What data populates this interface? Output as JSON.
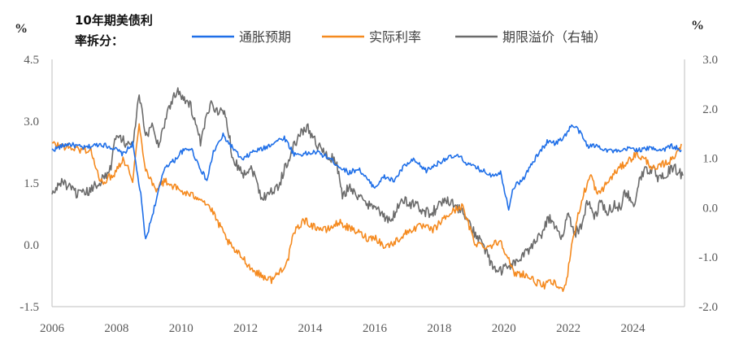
{
  "chart_data": {
    "type": "line",
    "title": [
      "10年期美债利",
      "率拆分："
    ],
    "left_unit": "%",
    "right_unit": "%",
    "left_axis": {
      "ylim": [
        -1.5,
        4.5
      ],
      "ticks": [
        "4.5",
        "3.0",
        "1.5",
        "0.0",
        "-1.5"
      ]
    },
    "right_axis": {
      "ylim": [
        -2.0,
        3.0
      ],
      "ticks": [
        "3.0",
        "2.0",
        "1.0",
        "0.0",
        "-1.0",
        "-2.0"
      ]
    },
    "x_ticks": [
      "2006",
      "2008",
      "2010",
      "2012",
      "2014",
      "2016",
      "2018",
      "2020",
      "2022",
      "2024"
    ],
    "xlim": [
      2006.0,
      2025.6
    ],
    "grid": false,
    "legend_position": "top",
    "series": [
      {
        "name": "通胀预期",
        "axis": "left",
        "color": "#1f6fe8",
        "points": [
          [
            2006.0,
            2.3
          ],
          [
            2006.5,
            2.45
          ],
          [
            2007.0,
            2.35
          ],
          [
            2007.5,
            2.45
          ],
          [
            2007.9,
            2.35
          ],
          [
            2008.2,
            2.2
          ],
          [
            2008.5,
            2.45
          ],
          [
            2008.75,
            1.2
          ],
          [
            2008.9,
            0.1
          ],
          [
            2009.2,
            1.0
          ],
          [
            2009.5,
            1.9
          ],
          [
            2009.8,
            2.05
          ],
          [
            2010.0,
            2.25
          ],
          [
            2010.3,
            2.35
          ],
          [
            2010.6,
            1.85
          ],
          [
            2010.8,
            1.55
          ],
          [
            2011.0,
            2.25
          ],
          [
            2011.3,
            2.65
          ],
          [
            2011.6,
            2.35
          ],
          [
            2011.9,
            2.05
          ],
          [
            2012.2,
            2.25
          ],
          [
            2012.6,
            2.35
          ],
          [
            2012.9,
            2.5
          ],
          [
            2013.2,
            2.6
          ],
          [
            2013.5,
            2.2
          ],
          [
            2013.8,
            2.2
          ],
          [
            2014.2,
            2.25
          ],
          [
            2014.6,
            2.1
          ],
          [
            2014.9,
            1.9
          ],
          [
            2015.2,
            1.75
          ],
          [
            2015.5,
            1.85
          ],
          [
            2015.8,
            1.55
          ],
          [
            2016.0,
            1.4
          ],
          [
            2016.3,
            1.65
          ],
          [
            2016.6,
            1.55
          ],
          [
            2016.9,
            1.9
          ],
          [
            2017.2,
            2.05
          ],
          [
            2017.6,
            1.8
          ],
          [
            2017.9,
            1.95
          ],
          [
            2018.2,
            2.1
          ],
          [
            2018.6,
            2.15
          ],
          [
            2018.9,
            1.95
          ],
          [
            2019.2,
            1.85
          ],
          [
            2019.6,
            1.7
          ],
          [
            2019.9,
            1.75
          ],
          [
            2020.15,
            0.9
          ],
          [
            2020.3,
            1.4
          ],
          [
            2020.6,
            1.6
          ],
          [
            2020.9,
            2.0
          ],
          [
            2021.2,
            2.35
          ],
          [
            2021.4,
            2.55
          ],
          [
            2021.6,
            2.45
          ],
          [
            2021.9,
            2.65
          ],
          [
            2022.1,
            2.9
          ],
          [
            2022.3,
            2.8
          ],
          [
            2022.6,
            2.4
          ],
          [
            2022.9,
            2.4
          ],
          [
            2023.2,
            2.3
          ],
          [
            2023.6,
            2.25
          ],
          [
            2023.9,
            2.35
          ],
          [
            2024.2,
            2.3
          ],
          [
            2024.6,
            2.35
          ],
          [
            2024.9,
            2.3
          ],
          [
            2025.2,
            2.4
          ],
          [
            2025.5,
            2.3
          ]
        ]
      },
      {
        "name": "实际利率",
        "axis": "left",
        "color": "#f58a1f",
        "points": [
          [
            2006.0,
            2.45
          ],
          [
            2006.3,
            2.4
          ],
          [
            2006.6,
            2.35
          ],
          [
            2006.9,
            2.3
          ],
          [
            2007.2,
            2.3
          ],
          [
            2007.5,
            1.5
          ],
          [
            2007.9,
            1.7
          ],
          [
            2008.2,
            2.1
          ],
          [
            2008.5,
            1.6
          ],
          [
            2008.7,
            2.9
          ],
          [
            2008.9,
            1.85
          ],
          [
            2009.2,
            1.35
          ],
          [
            2009.5,
            1.55
          ],
          [
            2009.8,
            1.4
          ],
          [
            2010.0,
            1.3
          ],
          [
            2010.3,
            1.2
          ],
          [
            2010.6,
            1.15
          ],
          [
            2010.9,
            0.9
          ],
          [
            2011.2,
            0.45
          ],
          [
            2011.4,
            0.15
          ],
          [
            2011.6,
            -0.1
          ],
          [
            2011.9,
            -0.3
          ],
          [
            2012.2,
            -0.6
          ],
          [
            2012.5,
            -0.75
          ],
          [
            2012.8,
            -0.85
          ],
          [
            2013.0,
            -0.7
          ],
          [
            2013.3,
            -0.4
          ],
          [
            2013.5,
            0.3
          ],
          [
            2013.8,
            0.6
          ],
          [
            2014.1,
            0.45
          ],
          [
            2014.5,
            0.35
          ],
          [
            2014.9,
            0.55
          ],
          [
            2015.2,
            0.4
          ],
          [
            2015.5,
            0.3
          ],
          [
            2015.8,
            0.15
          ],
          [
            2016.0,
            0.2
          ],
          [
            2016.3,
            -0.05
          ],
          [
            2016.6,
            0.05
          ],
          [
            2016.9,
            0.25
          ],
          [
            2017.2,
            0.4
          ],
          [
            2017.5,
            0.45
          ],
          [
            2017.8,
            0.35
          ],
          [
            2018.1,
            0.6
          ],
          [
            2018.4,
            0.8
          ],
          [
            2018.7,
            0.95
          ],
          [
            2018.9,
            0.5
          ],
          [
            2019.1,
            0.05
          ],
          [
            2019.5,
            -0.05
          ],
          [
            2019.9,
            0.1
          ],
          [
            2020.1,
            -0.25
          ],
          [
            2020.3,
            -0.7
          ],
          [
            2020.6,
            -0.7
          ],
          [
            2020.9,
            -0.85
          ],
          [
            2021.2,
            -1.0
          ],
          [
            2021.5,
            -0.9
          ],
          [
            2021.8,
            -1.1
          ],
          [
            2021.95,
            -0.85
          ],
          [
            2022.1,
            0.0
          ],
          [
            2022.3,
            0.7
          ],
          [
            2022.5,
            1.3
          ],
          [
            2022.7,
            1.7
          ],
          [
            2022.9,
            1.2
          ],
          [
            2023.2,
            1.5
          ],
          [
            2023.5,
            1.8
          ],
          [
            2023.8,
            2.0
          ],
          [
            2024.1,
            2.2
          ],
          [
            2024.4,
            2.05
          ],
          [
            2024.7,
            1.8
          ],
          [
            2024.9,
            1.95
          ],
          [
            2025.2,
            2.05
          ],
          [
            2025.5,
            2.45
          ]
        ]
      },
      {
        "name": "期限溢价（右轴）",
        "axis": "right",
        "color": "#6b6b6b",
        "points": [
          [
            2006.0,
            0.25
          ],
          [
            2006.3,
            0.55
          ],
          [
            2006.6,
            0.35
          ],
          [
            2006.9,
            0.25
          ],
          [
            2007.2,
            0.35
          ],
          [
            2007.5,
            0.55
          ],
          [
            2007.8,
            0.75
          ],
          [
            2008.0,
            1.55
          ],
          [
            2008.3,
            1.3
          ],
          [
            2008.5,
            1.25
          ],
          [
            2008.7,
            2.3
          ],
          [
            2008.9,
            1.4
          ],
          [
            2009.1,
            1.7
          ],
          [
            2009.3,
            1.25
          ],
          [
            2009.6,
            2.0
          ],
          [
            2009.9,
            2.4
          ],
          [
            2010.1,
            2.2
          ],
          [
            2010.3,
            2.05
          ],
          [
            2010.6,
            1.3
          ],
          [
            2010.9,
            2.1
          ],
          [
            2011.2,
            1.95
          ],
          [
            2011.4,
            1.85
          ],
          [
            2011.6,
            1.0
          ],
          [
            2011.9,
            0.7
          ],
          [
            2012.2,
            0.8
          ],
          [
            2012.5,
            0.2
          ],
          [
            2012.7,
            0.3
          ],
          [
            2013.0,
            0.4
          ],
          [
            2013.3,
            0.95
          ],
          [
            2013.6,
            1.4
          ],
          [
            2013.9,
            1.65
          ],
          [
            2014.2,
            1.3
          ],
          [
            2014.5,
            1.05
          ],
          [
            2014.8,
            0.95
          ],
          [
            2015.0,
            0.2
          ],
          [
            2015.2,
            0.45
          ],
          [
            2015.5,
            0.2
          ],
          [
            2015.8,
            0.05
          ],
          [
            2016.0,
            0.1
          ],
          [
            2016.2,
            -0.15
          ],
          [
            2016.5,
            -0.3
          ],
          [
            2016.8,
            0.15
          ],
          [
            2017.0,
            0.1
          ],
          [
            2017.3,
            0.05
          ],
          [
            2017.6,
            -0.1
          ],
          [
            2017.9,
            -0.05
          ],
          [
            2018.2,
            0.2
          ],
          [
            2018.5,
            0.05
          ],
          [
            2018.8,
            -0.15
          ],
          [
            2019.0,
            -0.45
          ],
          [
            2019.3,
            -0.65
          ],
          [
            2019.6,
            -1.15
          ],
          [
            2019.9,
            -1.3
          ],
          [
            2020.2,
            -1.15
          ],
          [
            2020.5,
            -1.05
          ],
          [
            2020.8,
            -0.85
          ],
          [
            2021.0,
            -0.6
          ],
          [
            2021.2,
            -0.5
          ],
          [
            2021.4,
            -0.2
          ],
          [
            2021.6,
            -0.45
          ],
          [
            2021.8,
            -0.55
          ],
          [
            2022.0,
            -0.15
          ],
          [
            2022.2,
            -0.5
          ],
          [
            2022.4,
            -0.4
          ],
          [
            2022.6,
            0.15
          ],
          [
            2022.8,
            -0.25
          ],
          [
            2023.0,
            0.1
          ],
          [
            2023.2,
            -0.1
          ],
          [
            2023.4,
            0.05
          ],
          [
            2023.6,
            0.0
          ],
          [
            2023.8,
            0.35
          ],
          [
            2024.0,
            0.0
          ],
          [
            2024.2,
            0.55
          ],
          [
            2024.4,
            0.75
          ],
          [
            2024.6,
            0.8
          ],
          [
            2024.8,
            0.55
          ],
          [
            2025.0,
            0.65
          ],
          [
            2025.2,
            0.8
          ],
          [
            2025.4,
            0.75
          ],
          [
            2025.55,
            0.65
          ]
        ]
      }
    ]
  }
}
